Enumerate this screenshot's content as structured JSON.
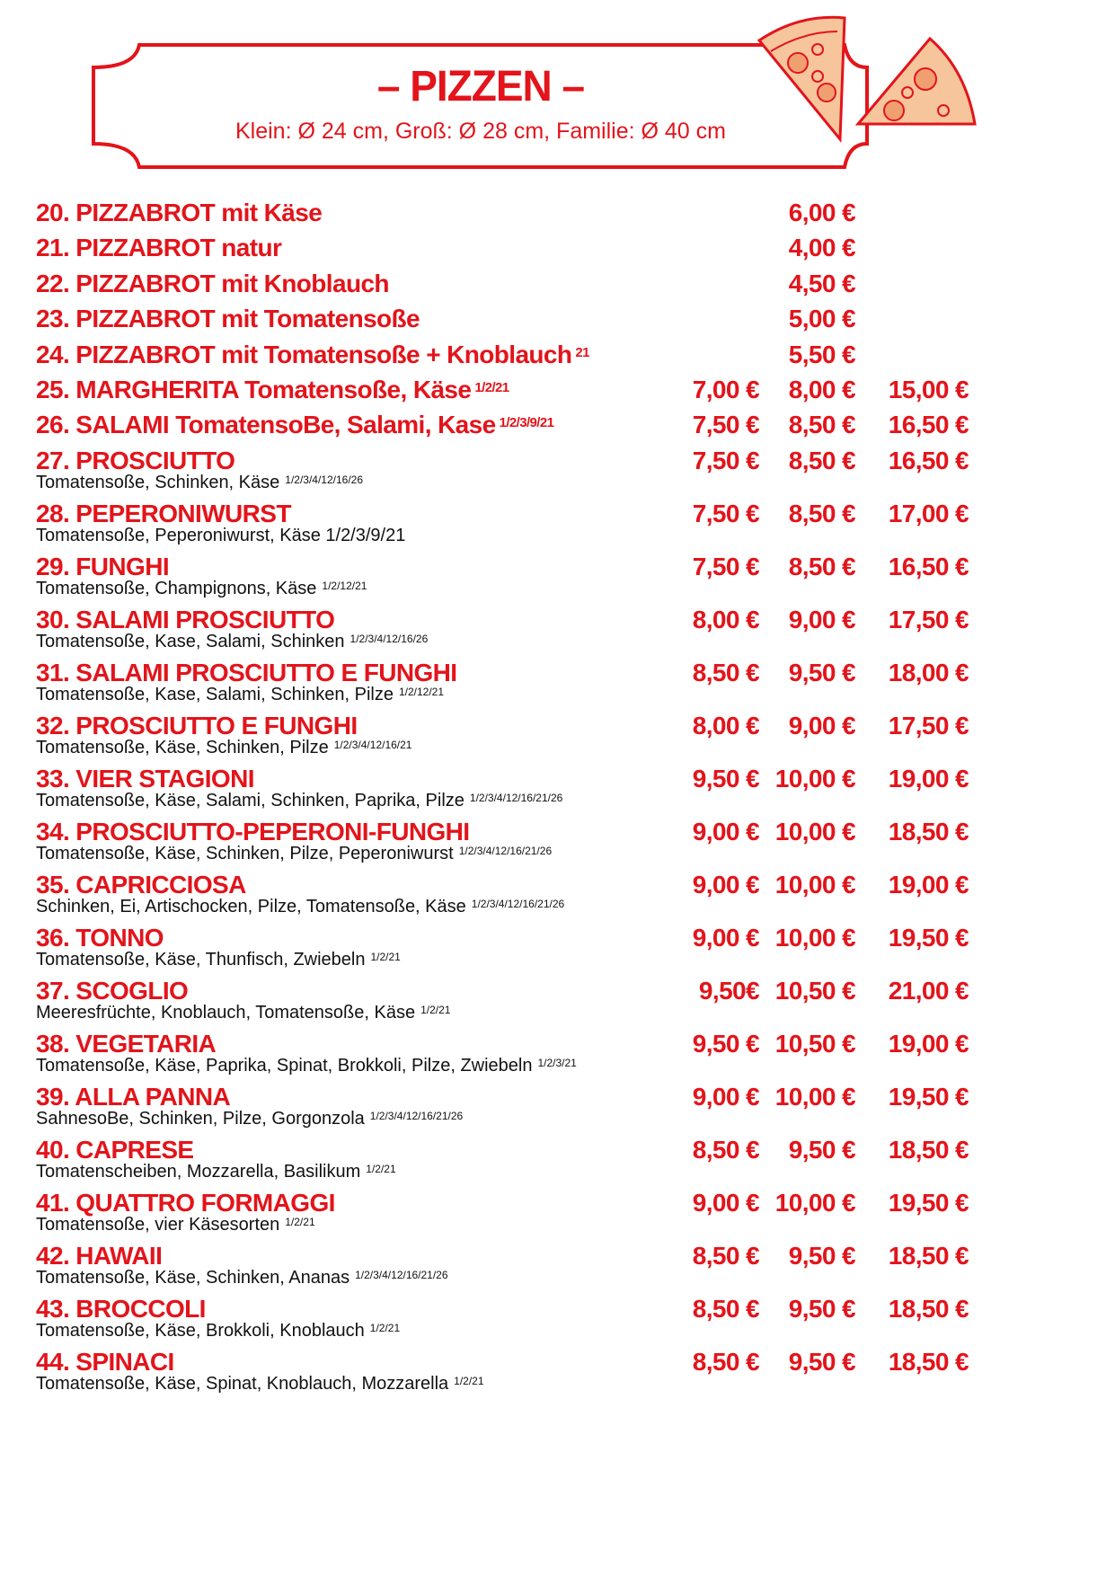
{
  "header": {
    "title": "– PIZZEN –",
    "subtitle": "Klein: Ø 24 cm, Groß: Ø 28 cm, Familie: Ø 40 cm",
    "decoration_icon": "pizza-slice-icon",
    "accent_color": "#e3141b"
  },
  "items": [
    {
      "name": "20. PIZZABROT mit Käse",
      "allergens": "",
      "desc": "",
      "desc_allergens": "",
      "prices": [
        "",
        "6,00 €",
        ""
      ]
    },
    {
      "name": "21. PIZZABROT natur",
      "allergens": "",
      "desc": "",
      "desc_allergens": "",
      "prices": [
        "",
        "4,00 €",
        ""
      ]
    },
    {
      "name": "22. PIZZABROT mit Knoblauch",
      "allergens": "",
      "desc": "",
      "desc_allergens": "",
      "prices": [
        "",
        "4,50 €",
        ""
      ]
    },
    {
      "name": "23. PIZZABROT mit Tomatensoße",
      "allergens": "",
      "desc": "",
      "desc_allergens": "",
      "prices": [
        "",
        "5,00 €",
        ""
      ]
    },
    {
      "name": "24. PIZZABROT mit Tomatensoße + Knoblauch",
      "allergens": "21",
      "desc": "",
      "desc_allergens": "",
      "prices": [
        "",
        "5,50 €",
        ""
      ]
    },
    {
      "name": "25. MARGHERITA Tomatensoße, Käse",
      "allergens": "1/2/21",
      "desc": "",
      "desc_allergens": "",
      "prices": [
        "7,00 €",
        "8,00 €",
        "15,00 €"
      ]
    },
    {
      "name": "26. SALAMI TomatensoBe, Salami, Kase",
      "allergens": "1/2/3/9/21",
      "desc": "",
      "desc_allergens": "",
      "prices": [
        "7,50 €",
        "8,50 €",
        "16,50 €"
      ]
    },
    {
      "name": "27. PROSCIUTTO",
      "allergens": "",
      "desc": "Tomatensoße, Schinken, Käse",
      "desc_allergens": "1/2/3/4/12/16/26",
      "prices": [
        "7,50 €",
        "8,50 €",
        "16,50 €"
      ]
    },
    {
      "name": "28. PEPERONIWURST",
      "allergens": "",
      "desc": "Tomatensoße, Peperoniwurst, Käse 1/2/3/9/21",
      "desc_allergens": "",
      "prices": [
        "7,50 €",
        "8,50 €",
        "17,00 €"
      ]
    },
    {
      "name": "29. FUNGHI",
      "allergens": "",
      "desc": "Tomatensoße, Champignons, Käse",
      "desc_allergens": "1/2/12/21",
      "prices": [
        "7,50 €",
        "8,50 €",
        "16,50 €"
      ]
    },
    {
      "name": "30. SALAMI PROSCIUTTO",
      "allergens": "",
      "desc": "Tomatensoße, Kase, Salami, Schinken",
      "desc_allergens": "1/2/3/4/12/16/26",
      "prices": [
        "8,00 €",
        "9,00 €",
        "17,50 €"
      ]
    },
    {
      "name": "31. SALAMI PROSCIUTTO E FUNGHI",
      "allergens": "",
      "desc": "Tomatensoße, Kase, Salami, Schinken, Pilze",
      "desc_allergens": "1/2/12/21",
      "prices": [
        "8,50 €",
        "9,50 €",
        "18,00 €"
      ]
    },
    {
      "name": "32. PROSCIUTTO E FUNGHI",
      "allergens": "",
      "desc": "Tomatensoße, Käse, Schinken, Pilze",
      "desc_allergens": "1/2/3/4/12/16/21",
      "prices": [
        "8,00 €",
        "9,00 €",
        "17,50 €"
      ]
    },
    {
      "name": "33. VIER STAGIONI",
      "allergens": "",
      "desc": "Tomatensoße, Käse, Salami, Schinken, Paprika, Pilze",
      "desc_allergens": "1/2/3/4/12/16/21/26",
      "prices": [
        "9,50 €",
        "10,00 €",
        "19,00 €"
      ]
    },
    {
      "name": "34. PROSCIUTTO-PEPERONI-FUNGHI",
      "allergens": "",
      "desc": "Tomatensoße, Käse, Schinken, Pilze, Peperoniwurst",
      "desc_allergens": "1/2/3/4/12/16/21/26",
      "prices": [
        "9,00 €",
        "10,00 €",
        "18,50 €"
      ]
    },
    {
      "name": "35. CAPRICCIOSA",
      "allergens": "",
      "desc": "Schinken, Ei, Artischocken, Pilze, Tomatensoße, Käse",
      "desc_allergens": "1/2/3/4/12/16/21/26",
      "prices": [
        "9,00 €",
        "10,00 €",
        "19,00 €"
      ]
    },
    {
      "name": "36. TONNO",
      "allergens": "",
      "desc": "Tomatensoße, Käse, Thunfisch, Zwiebeln",
      "desc_allergens": "1/2/21",
      "prices": [
        "9,00 €",
        "10,00 €",
        "19,50 €"
      ]
    },
    {
      "name": "37. SCOGLIO",
      "allergens": "",
      "desc": "Meeresfrüchte, Knoblauch, Tomatensoße, Käse",
      "desc_allergens": "1/2/21",
      "prices": [
        "9,50€",
        "10,50 €",
        "21,00 €"
      ]
    },
    {
      "name": "38. VEGETARIA",
      "allergens": "",
      "desc": "Tomatensoße, Käse, Paprika, Spinat, Brokkoli, Pilze, Zwiebeln",
      "desc_allergens": "1/2/3/21",
      "prices": [
        "9,50 €",
        "10,50 €",
        "19,00 €"
      ]
    },
    {
      "name": "39. ALLA PANNA",
      "allergens": "",
      "desc": "SahnesoBe, Schinken, Pilze, Gorgonzola",
      "desc_allergens": "1/2/3/4/12/16/21/26",
      "prices": [
        "9,00 €",
        "10,00 €",
        "19,50 €"
      ]
    },
    {
      "name": "40. CAPRESE",
      "allergens": "",
      "desc": "Tomatenscheiben, Mozzarella, Basilikum",
      "desc_allergens": "1/2/21",
      "prices": [
        "8,50 €",
        "9,50 €",
        "18,50 €"
      ]
    },
    {
      "name": "41. QUATTRO FORMAGGI",
      "allergens": "",
      "desc": "Tomatensoße, vier Käsesorten",
      "desc_allergens": "1/2/21",
      "prices": [
        "9,00 €",
        "10,00 €",
        "19,50 €"
      ]
    },
    {
      "name": "42. HAWAII",
      "allergens": "",
      "desc": "Tomatensoße, Käse, Schinken, Ananas",
      "desc_allergens": "1/2/3/4/12/16/21/26",
      "prices": [
        "8,50 €",
        "9,50 €",
        "18,50 €"
      ]
    },
    {
      "name": "43. BROCCOLI",
      "allergens": "",
      "desc": "Tomatensoße, Käse, Brokkoli, Knoblauch",
      "desc_allergens": "1/2/21",
      "prices": [
        "8,50 €",
        "9,50 €",
        "18,50 €"
      ]
    },
    {
      "name": "44. SPINACI",
      "allergens": "",
      "desc": "Tomatensoße, Käse, Spinat, Knoblauch, Mozzarella",
      "desc_allergens": "1/2/21",
      "prices": [
        "8,50 €",
        "9,50 €",
        "18,50 €"
      ]
    }
  ]
}
